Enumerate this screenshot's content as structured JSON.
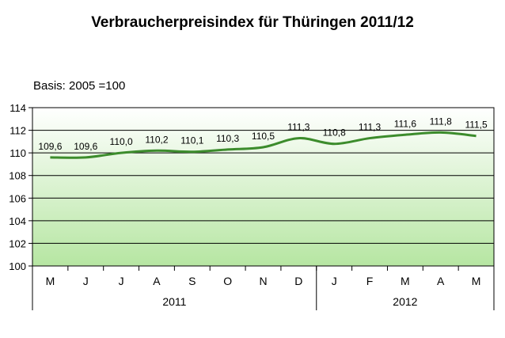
{
  "chart_data": {
    "type": "line",
    "title": "Verbraucherpreisindex für Thüringen 2011/12",
    "subtitle": "Basis:  2005 =100",
    "categories": [
      "M",
      "J",
      "J",
      "A",
      "S",
      "O",
      "N",
      "D",
      "J",
      "F",
      "M",
      "A",
      "M"
    ],
    "groups": [
      {
        "label": "2011",
        "count": 8
      },
      {
        "label": "2012",
        "count": 5
      }
    ],
    "series": [
      {
        "values": [
          109.6,
          109.6,
          110.0,
          110.2,
          110.1,
          110.3,
          110.5,
          111.3,
          110.8,
          111.3,
          111.6,
          111.8,
          111.5
        ]
      }
    ],
    "data_labels": [
      "109,6",
      "109,6",
      "110,0",
      "110,2",
      "110,1",
      "110,3",
      "110,5",
      "111,3",
      "110,8",
      "111,3",
      "111,6",
      "111,8",
      "111,5"
    ],
    "yticks": [
      "100",
      "102",
      "104",
      "106",
      "108",
      "110",
      "112",
      "114"
    ],
    "ylim": [
      100,
      114
    ],
    "grid": true,
    "line_color": "#3c8c2c",
    "background_gradient": [
      "#ffffff",
      "#b6e6a2"
    ]
  }
}
